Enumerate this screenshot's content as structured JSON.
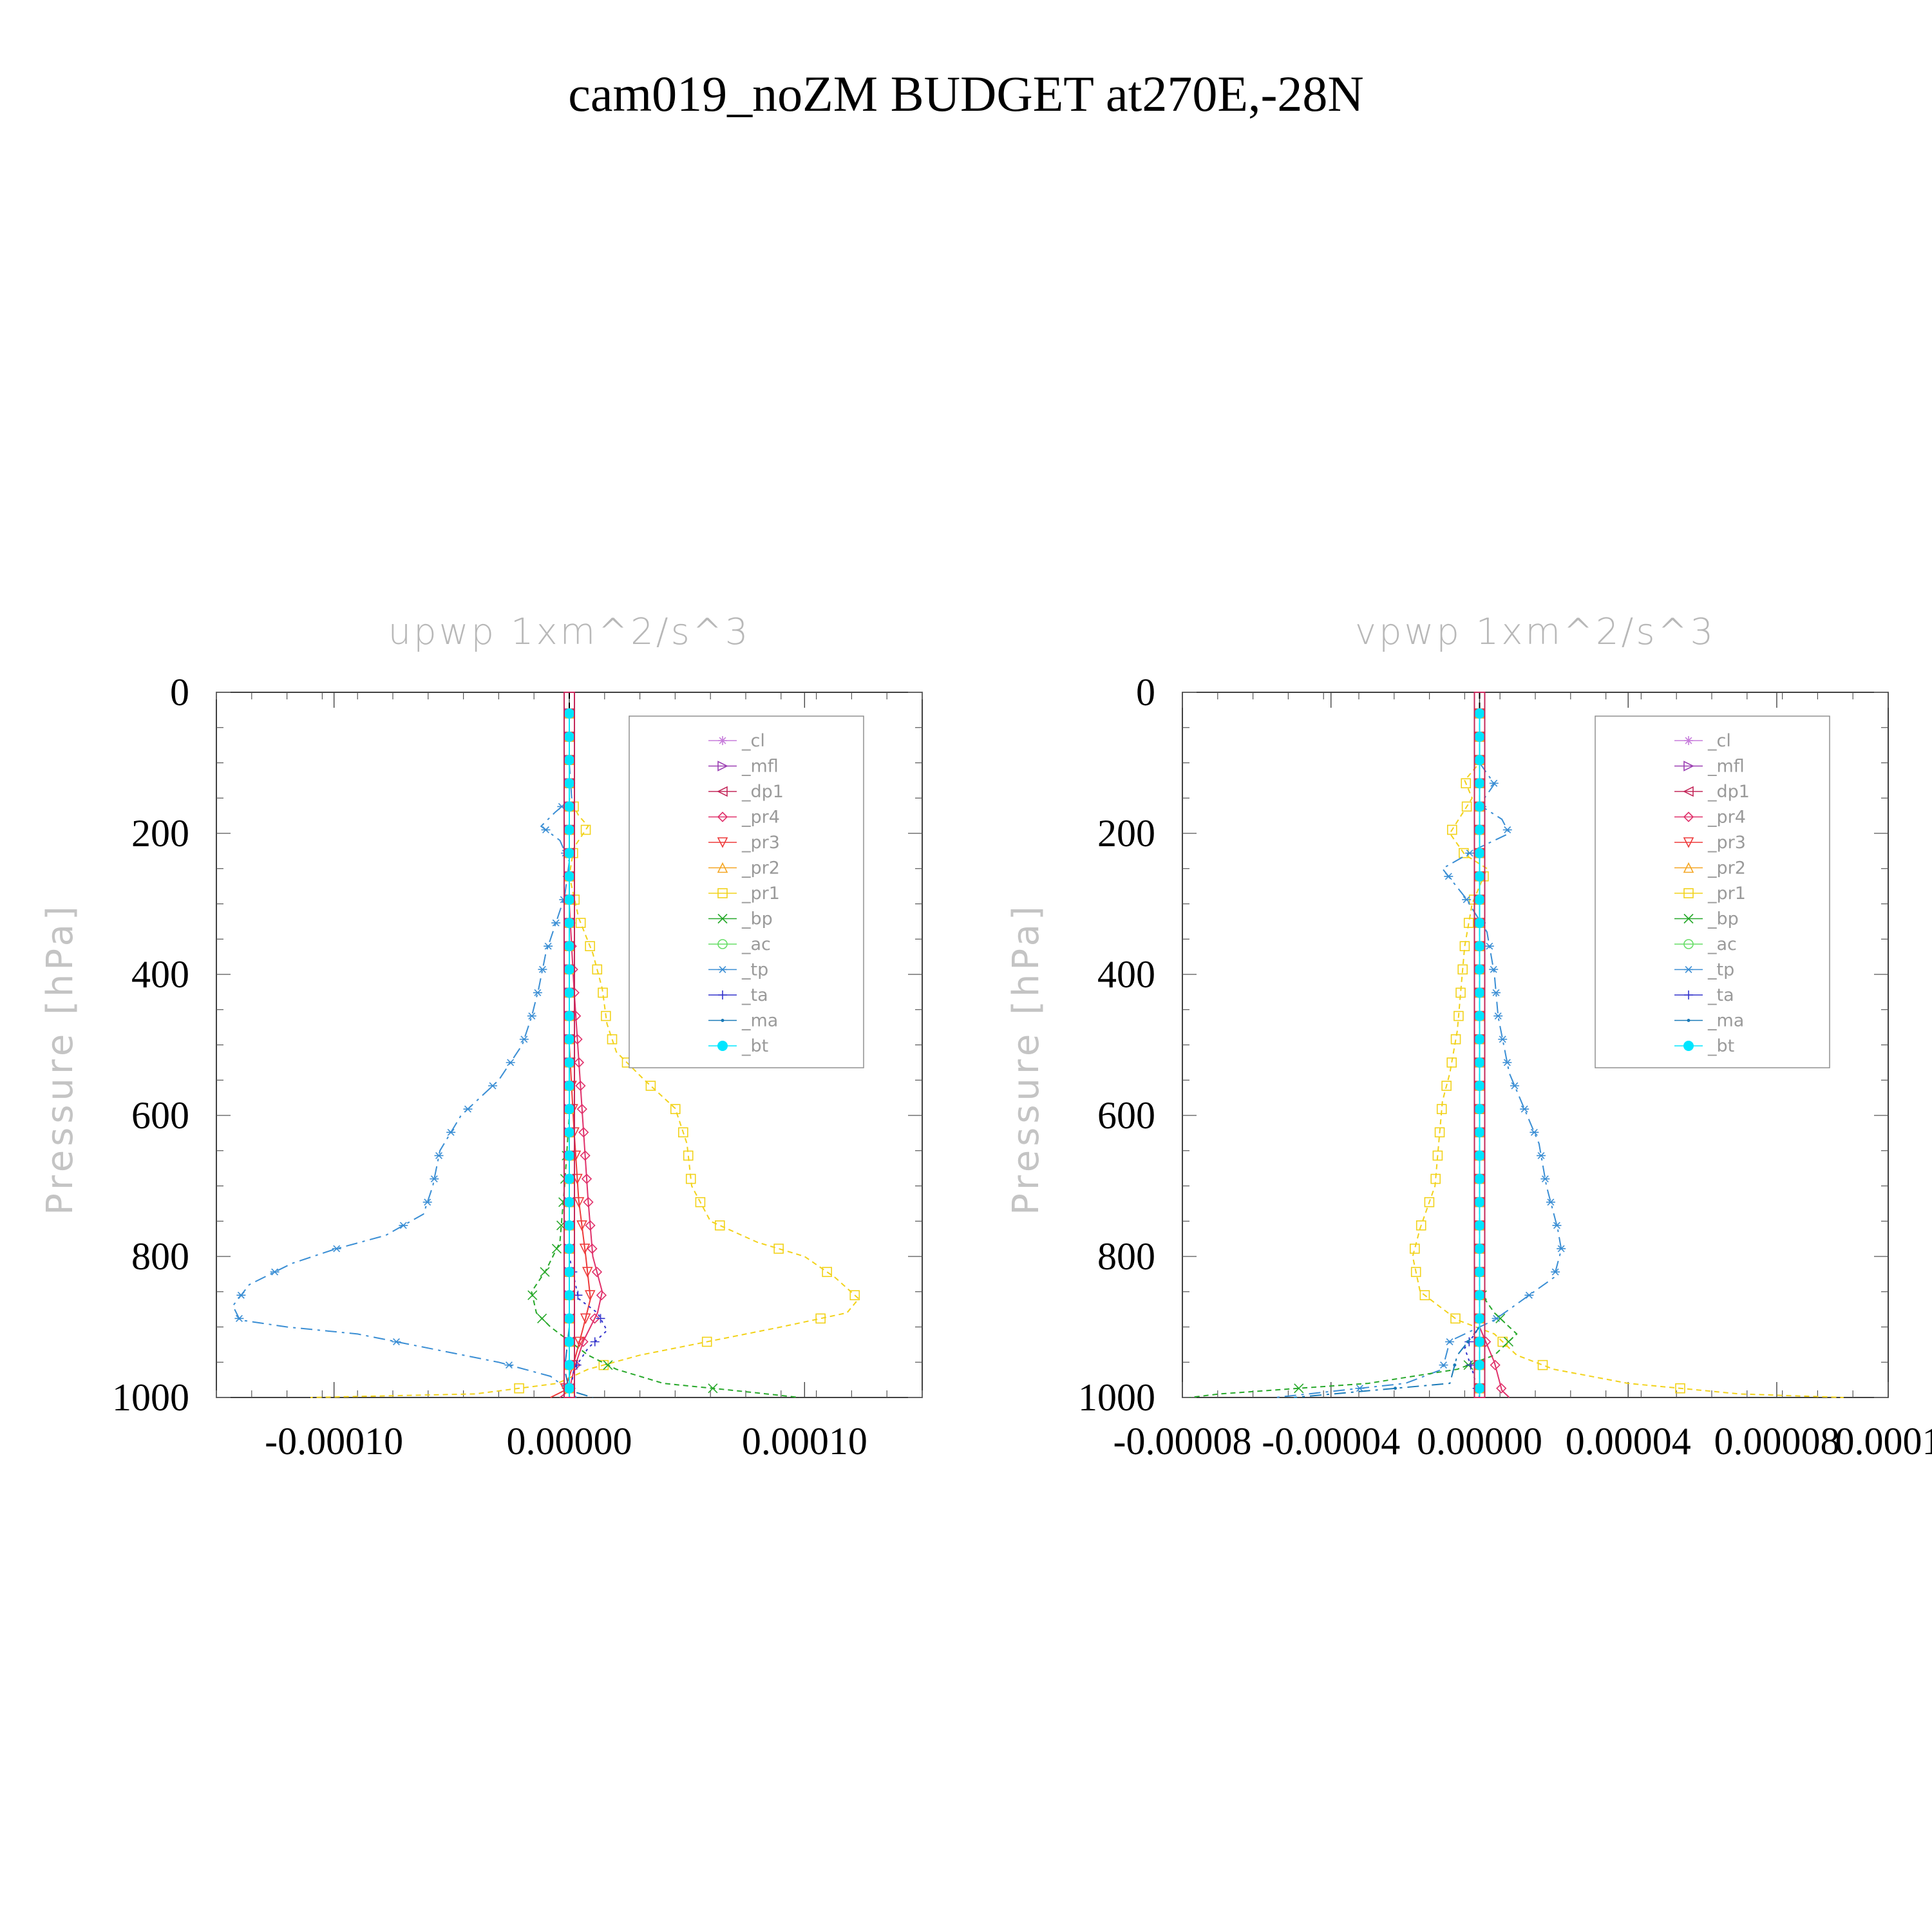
{
  "figure": {
    "title": "cam019_noZM  BUDGET at270E,-28N"
  },
  "colors": {
    "cl": "#c77ddb",
    "mfl": "#9b3fb2",
    "dp1": "#c4285a",
    "pr4": "#e0306a",
    "pr3": "#ee3a3a",
    "pr2": "#f5a623",
    "pr1": "#f2d21a",
    "bp": "#27a82a",
    "ac": "#66dd66",
    "tp": "#3a8ed4",
    "ta": "#3333cc",
    "ma": "#1a7ab8",
    "bt": "#00e5ff"
  },
  "legend": [
    {
      "key": "cl",
      "label": "_cl",
      "marker": "star"
    },
    {
      "key": "mfl",
      "label": "_mfl",
      "marker": "tri-right"
    },
    {
      "key": "dp1",
      "label": "_dp1",
      "marker": "tri-left"
    },
    {
      "key": "pr4",
      "label": "_pr4",
      "marker": "diamond"
    },
    {
      "key": "pr3",
      "label": "_pr3",
      "marker": "tri-down"
    },
    {
      "key": "pr2",
      "label": "_pr2",
      "marker": "tri-up"
    },
    {
      "key": "pr1",
      "label": "_pr1",
      "marker": "square"
    },
    {
      "key": "bp",
      "label": "_bp",
      "marker": "x"
    },
    {
      "key": "ac",
      "label": "_ac",
      "marker": "circle"
    },
    {
      "key": "tp",
      "label": "_tp",
      "marker": "asterisk"
    },
    {
      "key": "ta",
      "label": "_ta",
      "marker": "plus"
    },
    {
      "key": "ma",
      "label": "_ma",
      "marker": "dot"
    },
    {
      "key": "bt",
      "label": "_bt",
      "marker": "filled-circle"
    }
  ],
  "chart_data": [
    {
      "type": "line",
      "title": "upwp    1xm^2/s^3",
      "ylabel": "Pressure [hPa]",
      "xlim": [
        -0.00015,
        0.00015
      ],
      "ylim": [
        1000,
        0
      ],
      "xticks": [
        -0.0001,
        0.0,
        0.0001
      ],
      "xtick_labels": [
        "-0.00010",
        "0.00000",
        "0.00010"
      ],
      "yticks": [
        0,
        200,
        400,
        600,
        800,
        1000
      ],
      "ytick_labels": [
        "0",
        "200",
        "400",
        "600",
        "800",
        "1000"
      ],
      "legend_position": "top-right",
      "series": [
        {
          "key": "tp",
          "points": [
            [
              0,
              30
            ],
            [
              0,
              100
            ],
            [
              1e-06,
              150
            ],
            [
              -6e-06,
              170
            ],
            [
              -1.2e-05,
              190
            ],
            [
              -4e-06,
              210
            ],
            [
              0,
              240
            ],
            [
              -2e-06,
              290
            ],
            [
              -6e-06,
              330
            ],
            [
              -1e-05,
              370
            ],
            [
              -1.3e-05,
              420
            ],
            [
              -1.6e-05,
              460
            ],
            [
              -2e-05,
              500
            ],
            [
              -3e-05,
              550
            ],
            [
              -4.6e-05,
              600
            ],
            [
              -5.5e-05,
              650
            ],
            [
              -5.8e-05,
              700
            ],
            [
              -6.2e-05,
              740
            ],
            [
              -7.8e-05,
              770
            ],
            [
              -0.0001,
              790
            ],
            [
              -0.000118,
              810
            ],
            [
              -0.000136,
              840
            ],
            [
              -0.000143,
              870
            ],
            [
              -0.00014,
              890
            ],
            [
              -0.00012,
              900
            ],
            [
              -9e-05,
              910
            ],
            [
              -6e-05,
              930
            ],
            [
              -3e-05,
              950
            ],
            [
              -8e-06,
              970
            ],
            [
              0,
              990
            ],
            [
              3e-06,
              1000
            ]
          ]
        },
        {
          "key": "pr1",
          "points": [
            [
              0,
              30
            ],
            [
              0,
              150
            ],
            [
              4e-06,
              175
            ],
            [
              8e-06,
              190
            ],
            [
              2e-06,
              220
            ],
            [
              0,
              260
            ],
            [
              4e-06,
              320
            ],
            [
              1e-05,
              370
            ],
            [
              1.4e-05,
              420
            ],
            [
              1.6e-05,
              470
            ],
            [
              2e-05,
              510
            ],
            [
              3.2e-05,
              550
            ],
            [
              4.5e-05,
              590
            ],
            [
              5e-05,
              640
            ],
            [
              5.2e-05,
              700
            ],
            [
              6e-05,
              750
            ],
            [
              8e-05,
              780
            ],
            [
              0.0001,
              800
            ],
            [
              0.000113,
              830
            ],
            [
              0.000123,
              860
            ],
            [
              0.000118,
              880
            ],
            [
              9e-05,
              900
            ],
            [
              6e-05,
              920
            ],
            [
              3e-05,
              940
            ],
            [
              8e-06,
              960
            ],
            [
              -5e-06,
              980
            ],
            [
              -4e-05,
              995
            ],
            [
              -0.00011,
              1000
            ]
          ]
        },
        {
          "key": "bp",
          "points": [
            [
              0,
              30
            ],
            [
              0,
              600
            ],
            [
              -2e-06,
              700
            ],
            [
              -4e-06,
              780
            ],
            [
              -1e-05,
              820
            ],
            [
              -1.6e-05,
              850
            ],
            [
              -1.4e-05,
              880
            ],
            [
              -8e-06,
              900
            ],
            [
              0,
              920
            ],
            [
              8e-06,
              940
            ],
            [
              2e-05,
              960
            ],
            [
              4e-05,
              980
            ],
            [
              7e-05,
              990
            ],
            [
              9.8e-05,
              1000
            ]
          ]
        },
        {
          "key": "pr4",
          "points": [
            [
              0,
              30
            ],
            [
              0,
              300
            ],
            [
              2e-06,
              420
            ],
            [
              4e-06,
              520
            ],
            [
              6e-06,
              620
            ],
            [
              8e-06,
              720
            ],
            [
              1e-05,
              800
            ],
            [
              1.4e-05,
              850
            ],
            [
              1.2e-05,
              880
            ],
            [
              6e-06,
              920
            ],
            [
              2e-06,
              960
            ],
            [
              0,
              990
            ],
            [
              -4e-06,
              1000
            ]
          ]
        },
        {
          "key": "pr3",
          "points": [
            [
              0,
              30
            ],
            [
              0,
              500
            ],
            [
              2e-06,
              620
            ],
            [
              4e-06,
              720
            ],
            [
              7e-06,
              800
            ],
            [
              9e-06,
              860
            ],
            [
              6e-06,
              900
            ],
            [
              2e-06,
              950
            ],
            [
              -2e-06,
              990
            ],
            [
              -8e-06,
              1000
            ]
          ]
        },
        {
          "key": "ta",
          "points": [
            [
              0,
              30
            ],
            [
              0,
              800
            ],
            [
              4e-06,
              860
            ],
            [
              1.2e-05,
              880
            ],
            [
              1.6e-05,
              905
            ],
            [
              8e-06,
              930
            ],
            [
              2e-06,
              960
            ],
            [
              0,
              1000
            ]
          ]
        },
        {
          "key": "ma",
          "points": [
            [
              0,
              30
            ],
            [
              0,
              900
            ],
            [
              -2e-06,
              960
            ],
            [
              0,
              990
            ],
            [
              1e-05,
              1000
            ]
          ]
        },
        {
          "key": "cl",
          "points": [
            [
              0,
              30
            ],
            [
              0,
              1000
            ]
          ]
        },
        {
          "key": "mfl",
          "points": [
            [
              0,
              30
            ],
            [
              0,
              1000
            ]
          ]
        },
        {
          "key": "dp1",
          "points": [
            [
              0,
              30
            ],
            [
              0,
              1000
            ]
          ]
        },
        {
          "key": "pr2",
          "points": [
            [
              0,
              30
            ],
            [
              0,
              1000
            ]
          ]
        },
        {
          "key": "ac",
          "points": [
            [
              0,
              30
            ],
            [
              0,
              1000
            ]
          ]
        },
        {
          "key": "bt",
          "points": [
            [
              0,
              30
            ],
            [
              0,
              1000
            ]
          ]
        }
      ]
    },
    {
      "type": "line",
      "title": "vpwp    1xm^2/s^3",
      "ylabel": "Pressure [hPa]",
      "xlim": [
        -8e-05,
        0.00011
      ],
      "ylim": [
        1000,
        0
      ],
      "xticks": [
        -8e-05,
        -4e-05,
        0.0,
        4e-05,
        8e-05,
        0.00011
      ],
      "xtick_labels": [
        "-0.00008",
        "-0.00004",
        "0.00000",
        "0.00004",
        "0.00008",
        "0.0001"
      ],
      "yticks": [
        0,
        200,
        400,
        600,
        800,
        1000
      ],
      "ytick_labels": [
        "0",
        "200",
        "400",
        "600",
        "800",
        "1000"
      ],
      "legend_position": "top-right",
      "series": [
        {
          "key": "pr1",
          "points": [
            [
              0,
              30
            ],
            [
              0,
              100
            ],
            [
              -4e-06,
              125
            ],
            [
              -2e-06,
              150
            ],
            [
              -8e-06,
              200
            ],
            [
              -4e-06,
              230
            ],
            [
              2e-06,
              250
            ],
            [
              -2e-06,
              300
            ],
            [
              -4e-06,
              360
            ],
            [
              -5e-06,
              420
            ],
            [
              -6e-06,
              480
            ],
            [
              -8e-06,
              540
            ],
            [
              -1e-05,
              580
            ],
            [
              -1.1e-05,
              640
            ],
            [
              -1.2e-05,
              700
            ],
            [
              -1.6e-05,
              760
            ],
            [
              -1.8e-05,
              800
            ],
            [
              -1.6e-05,
              850
            ],
            [
              -6e-06,
              890
            ],
            [
              4e-06,
              910
            ],
            [
              1e-05,
              940
            ],
            [
              2e-05,
              960
            ],
            [
              4e-05,
              980
            ],
            [
              7e-05,
              995
            ],
            [
              9.8e-05,
              1000
            ]
          ]
        },
        {
          "key": "tp",
          "points": [
            [
              0,
              30
            ],
            [
              0,
              100
            ],
            [
              4e-06,
              130
            ],
            [
              0,
              160
            ],
            [
              6e-06,
              180
            ],
            [
              8e-06,
              200
            ],
            [
              0,
              220
            ],
            [
              -1e-05,
              250
            ],
            [
              -4e-06,
              290
            ],
            [
              2e-06,
              340
            ],
            [
              4e-06,
              400
            ],
            [
              5e-06,
              460
            ],
            [
              8e-06,
              540
            ],
            [
              1.2e-05,
              590
            ],
            [
              1.6e-05,
              640
            ],
            [
              1.8e-05,
              700
            ],
            [
              2.1e-05,
              760
            ],
            [
              2.2e-05,
              790
            ],
            [
              2e-05,
              830
            ],
            [
              1.2e-05,
              860
            ],
            [
              4e-06,
              890
            ],
            [
              -8e-06,
              920
            ],
            [
              -1e-05,
              960
            ],
            [
              -2e-05,
              980
            ],
            [
              -5.5e-05,
              1000
            ]
          ]
        },
        {
          "key": "bp",
          "points": [
            [
              0,
              30
            ],
            [
              0,
              850
            ],
            [
              4e-06,
              880
            ],
            [
              1e-05,
              910
            ],
            [
              4e-06,
              940
            ],
            [
              -6e-06,
              960
            ],
            [
              -3e-05,
              980
            ],
            [
              -7e-05,
              995
            ],
            [
              -7.8e-05,
              1000
            ]
          ]
        },
        {
          "key": "pr4",
          "points": [
            [
              0,
              30
            ],
            [
              0,
              900
            ],
            [
              4e-06,
              950
            ],
            [
              6e-06,
              990
            ],
            [
              8e-06,
              1000
            ]
          ]
        },
        {
          "key": "ta",
          "points": [
            [
              0,
              30
            ],
            [
              0,
              900
            ],
            [
              -4e-06,
              930
            ],
            [
              -2e-06,
              960
            ],
            [
              0,
              1000
            ]
          ]
        },
        {
          "key": "ma",
          "points": [
            [
              0,
              30
            ],
            [
              0,
              900
            ],
            [
              -6e-06,
              940
            ],
            [
              -8e-06,
              980
            ],
            [
              -5e-05,
              1000
            ]
          ]
        },
        {
          "key": "cl",
          "points": [
            [
              0,
              30
            ],
            [
              0,
              1000
            ]
          ]
        },
        {
          "key": "mfl",
          "points": [
            [
              0,
              30
            ],
            [
              0,
              1000
            ]
          ]
        },
        {
          "key": "dp1",
          "points": [
            [
              0,
              30
            ],
            [
              0,
              1000
            ]
          ]
        },
        {
          "key": "pr3",
          "points": [
            [
              0,
              30
            ],
            [
              0,
              1000
            ]
          ]
        },
        {
          "key": "pr2",
          "points": [
            [
              0,
              30
            ],
            [
              0,
              1000
            ]
          ]
        },
        {
          "key": "ac",
          "points": [
            [
              0,
              30
            ],
            [
              0,
              1000
            ]
          ]
        },
        {
          "key": "bt",
          "points": [
            [
              0,
              30
            ],
            [
              0,
              1000
            ]
          ]
        }
      ]
    }
  ]
}
